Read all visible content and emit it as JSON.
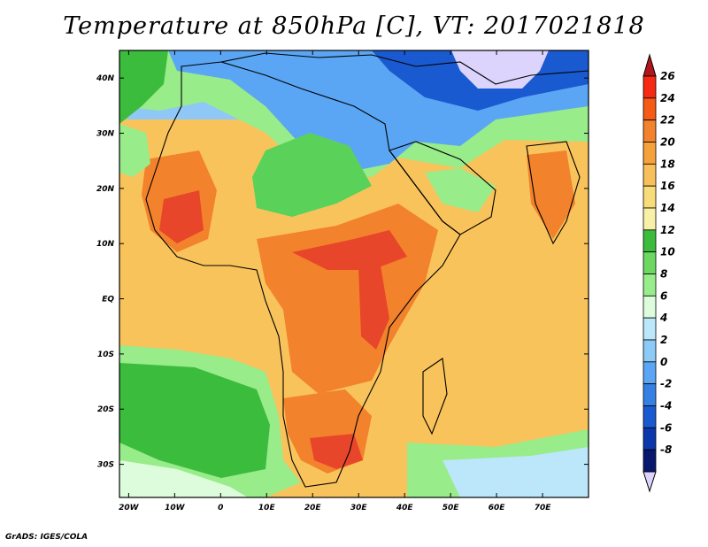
{
  "title": "Temperature at 850hPa [C], VT: 2017021818",
  "credit": "GrADS: IGES/COLA",
  "map": {
    "region": "Africa",
    "variable": "Temperature at 850hPa",
    "units": "C",
    "valid_time": "2017021818",
    "lon_range": [
      -22,
      80
    ],
    "lat_range": [
      -36,
      45
    ],
    "x_tick_labels": [
      {
        "lon": -20,
        "label": "20W"
      },
      {
        "lon": -10,
        "label": "10W"
      },
      {
        "lon": 0,
        "label": "0"
      },
      {
        "lon": 10,
        "label": "10E"
      },
      {
        "lon": 20,
        "label": "20E"
      },
      {
        "lon": 30,
        "label": "30E"
      },
      {
        "lon": 40,
        "label": "40E"
      },
      {
        "lon": 50,
        "label": "50E"
      },
      {
        "lon": 60,
        "label": "60E"
      },
      {
        "lon": 70,
        "label": "70E"
      }
    ],
    "y_tick_labels": [
      {
        "lat": 40,
        "label": "40N"
      },
      {
        "lat": 30,
        "label": "30N"
      },
      {
        "lat": 20,
        "label": "20N"
      },
      {
        "lat": 10,
        "label": "10N"
      },
      {
        "lat": 0,
        "label": "EQ"
      },
      {
        "lat": -10,
        "label": "10S"
      },
      {
        "lat": -20,
        "label": "20S"
      },
      {
        "lat": -30,
        "label": "30S"
      }
    ]
  },
  "colorbar": {
    "labels": [
      "26",
      "24",
      "22",
      "20",
      "18",
      "16",
      "14",
      "12",
      "10",
      "8",
      "6",
      "4",
      "2",
      "0",
      "-2",
      "-4",
      "-6",
      "-8"
    ],
    "colors_top_to_bottom": [
      "#f62a14",
      "#f55a16",
      "#f2822c",
      "#f6a23c",
      "#f8c05a",
      "#f9dc7a",
      "#f8f0a6",
      "#3cbc3c",
      "#6cd862",
      "#98ec8a",
      "#dcfcdc",
      "#bce6fa",
      "#8ccaf8",
      "#5aa6f4",
      "#3680e4",
      "#1a5ad0",
      "#0c38ac",
      "#08186e"
    ],
    "upper_triangle_color": "#b4141c",
    "lower_triangle_color": "#dcd4fc"
  }
}
